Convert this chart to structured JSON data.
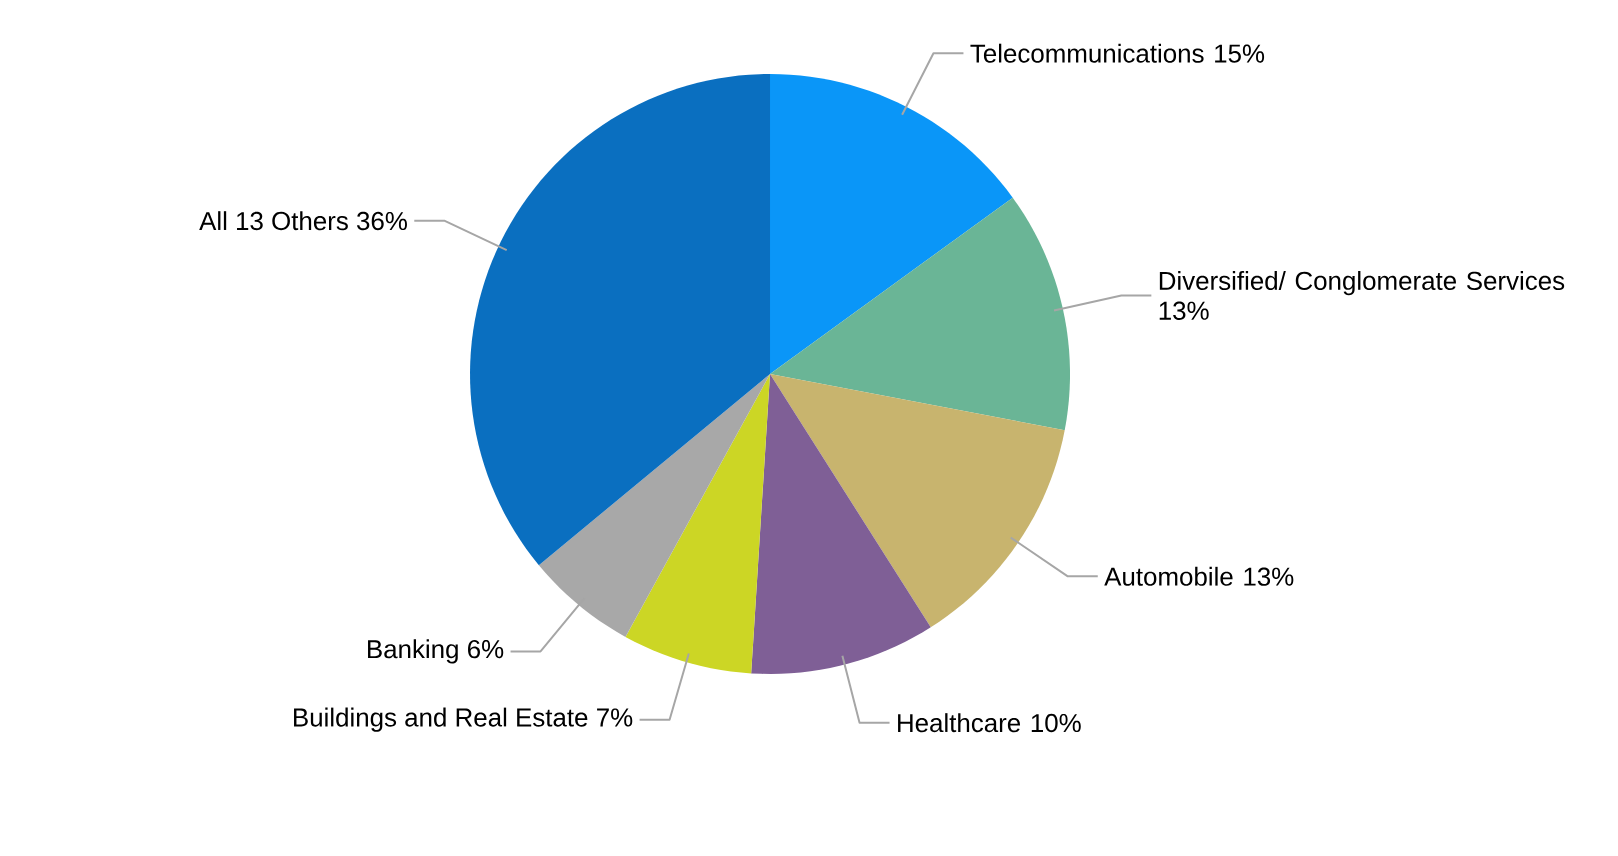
{
  "chart_data": {
    "type": "pie",
    "categories": [
      "Telecommunications",
      "Diversified/ Conglomerate Services",
      "Automobile",
      "Healthcare",
      "Buildings and Real Estate",
      "Banking",
      "All 13 Others"
    ],
    "values": [
      15,
      13,
      13,
      10,
      7,
      6,
      36
    ],
    "value_labels": [
      "15%",
      "13%",
      "13%",
      "10%",
      "7%",
      "6%",
      "36%"
    ],
    "colors": [
      "#0a96f8",
      "#6ab596",
      "#c8b46e",
      "#7f5f96",
      "#ccd625",
      "#a8a8a8",
      "#0a6fc0"
    ]
  }
}
